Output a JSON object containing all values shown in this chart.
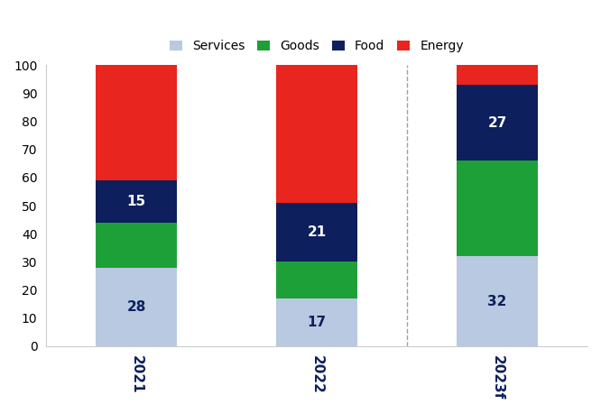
{
  "categories": [
    "2021",
    "2022",
    "2023f"
  ],
  "services": [
    28,
    17,
    32
  ],
  "goods": [
    16,
    13,
    34
  ],
  "food": [
    15,
    21,
    27
  ],
  "energy": [
    41,
    49,
    7
  ],
  "services_labels": [
    "28",
    "17",
    "32"
  ],
  "food_labels": [
    "15",
    "21",
    "27"
  ],
  "colors": {
    "services": "#b8c9e1",
    "goods": "#1ea038",
    "food": "#0d1f5c",
    "energy": "#e8251f"
  },
  "ylim": [
    0,
    100
  ],
  "yticks": [
    0,
    10,
    20,
    30,
    40,
    50,
    60,
    70,
    80,
    90,
    100
  ],
  "legend_labels": [
    "Services",
    "Goods",
    "Food",
    "Energy"
  ],
  "dashed_line_x": 1.5,
  "background_color": "#ffffff",
  "bar_width": 0.45
}
